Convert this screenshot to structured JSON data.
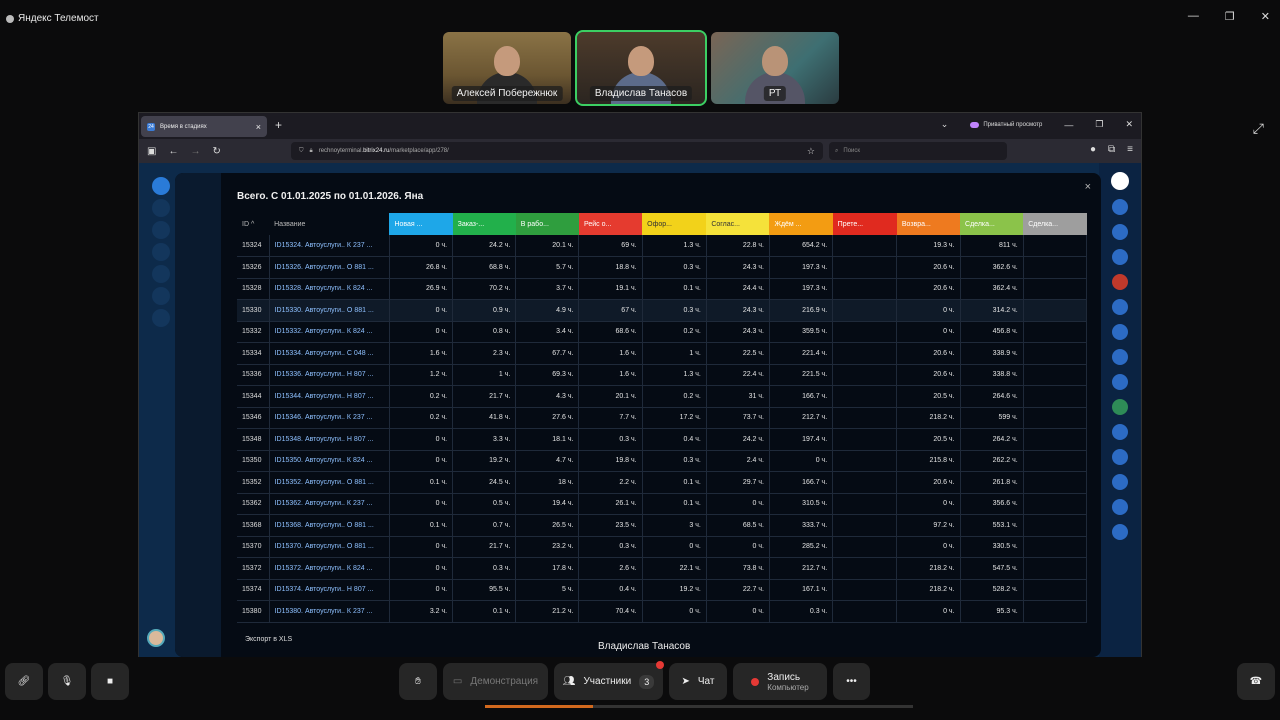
{
  "window": {
    "app_title": "Яндекс Телемост",
    "controls": [
      "—",
      "❐",
      "✕"
    ]
  },
  "participants": [
    {
      "name": "Алексей Побережнюк"
    },
    {
      "name": "Владислав Танасов"
    },
    {
      "name": "РТ"
    }
  ],
  "browser": {
    "tab_title": "Время в стадиях",
    "tab_icon": "24",
    "private_label": "Приватный просмотр",
    "url_prefix": "rechnoyterminal.",
    "url_domain": "bitrix24.ru",
    "url_path": "/marketplace/app/278/",
    "search_placeholder": "Поиск"
  },
  "modal": {
    "title": "Всего. С 01.01.2025 по 01.01.2026. Яна",
    "export_label": "Экспорт в XLS",
    "columns": [
      {
        "label": "ID ^",
        "color": ""
      },
      {
        "label": "Название",
        "color": ""
      },
      {
        "label": "Новая ...",
        "color": "#1ea7e8"
      },
      {
        "label": "Заказ-...",
        "color": "#22b04b"
      },
      {
        "label": "В рабо...",
        "color": "#2f9e3e"
      },
      {
        "label": "Рейс о...",
        "color": "#e53b2f"
      },
      {
        "label": "Офор...",
        "color": "#f2d21a"
      },
      {
        "label": "Соглас...",
        "color": "#f5e23a"
      },
      {
        "label": "Ждём ...",
        "color": "#f39c12"
      },
      {
        "label": "Прете...",
        "color": "#e02a1f"
      },
      {
        "label": "Возвра...",
        "color": "#ee7a1f"
      },
      {
        "label": "Сделка...",
        "color": "#8bc34a"
      },
      {
        "label": "Сделка...",
        "color": "#9e9e9e"
      }
    ],
    "rows": [
      [
        "15324",
        "ID15324. Автоуслуги.. К 237 ...",
        "0 ч.",
        "24.2 ч.",
        "20.1 ч.",
        "69 ч.",
        "1.3 ч.",
        "22.8 ч.",
        "654.2 ч.",
        "",
        "19.3 ч.",
        "811 ч.",
        ""
      ],
      [
        "15326",
        "ID15326. Автоуслуги.. О 881 ...",
        "26.8 ч.",
        "68.8 ч.",
        "5.7 ч.",
        "18.8 ч.",
        "0.3 ч.",
        "24.3 ч.",
        "197.3 ч.",
        "",
        "20.6 ч.",
        "362.6 ч.",
        ""
      ],
      [
        "15328",
        "ID15328. Автоуслуги.. К 824 ...",
        "26.9 ч.",
        "70.2 ч.",
        "3.7 ч.",
        "19.1 ч.",
        "0.1 ч.",
        "24.4 ч.",
        "197.3 ч.",
        "",
        "20.6 ч.",
        "362.4 ч.",
        ""
      ],
      [
        "15330",
        "ID15330. Автоуслуги.. О 881 ...",
        "0 ч.",
        "0.9 ч.",
        "4.9 ч.",
        "67 ч.",
        "0.3 ч.",
        "24.3 ч.",
        "216.9 ч.",
        "",
        "0 ч.",
        "314.2 ч.",
        ""
      ],
      [
        "15332",
        "ID15332. Автоуслуги.. К 824 ...",
        "0 ч.",
        "0.8 ч.",
        "3.4 ч.",
        "68.6 ч.",
        "0.2 ч.",
        "24.3 ч.",
        "359.5 ч.",
        "",
        "0 ч.",
        "456.8 ч.",
        ""
      ],
      [
        "15334",
        "ID15334. Автоуслуги.. С 048 ...",
        "1.6 ч.",
        "2.3 ч.",
        "67.7 ч.",
        "1.6 ч.",
        "1 ч.",
        "22.5 ч.",
        "221.4 ч.",
        "",
        "20.6 ч.",
        "338.9 ч.",
        ""
      ],
      [
        "15336",
        "ID15336. Автоуслуги.. Н 807 ...",
        "1.2 ч.",
        "1 ч.",
        "69.3 ч.",
        "1.6 ч.",
        "1.3 ч.",
        "22.4 ч.",
        "221.5 ч.",
        "",
        "20.6 ч.",
        "338.8 ч.",
        ""
      ],
      [
        "15344",
        "ID15344. Автоуслуги.. Н 807 ...",
        "0.2 ч.",
        "21.7 ч.",
        "4.3 ч.",
        "20.1 ч.",
        "0.2 ч.",
        "31 ч.",
        "166.7 ч.",
        "",
        "20.5 ч.",
        "264.6 ч.",
        ""
      ],
      [
        "15346",
        "ID15346. Автоуслуги.. К 237 ...",
        "0.2 ч.",
        "41.8 ч.",
        "27.6 ч.",
        "7.7 ч.",
        "17.2 ч.",
        "73.7 ч.",
        "212.7 ч.",
        "",
        "218.2 ч.",
        "599 ч.",
        ""
      ],
      [
        "15348",
        "ID15348. Автоуслуги.. Н 807 ...",
        "0 ч.",
        "3.3 ч.",
        "18.1 ч.",
        "0.3 ч.",
        "0.4 ч.",
        "24.2 ч.",
        "197.4 ч.",
        "",
        "20.5 ч.",
        "264.2 ч.",
        ""
      ],
      [
        "15350",
        "ID15350. Автоуслуги.. К 824 ...",
        "0 ч.",
        "19.2 ч.",
        "4.7 ч.",
        "19.8 ч.",
        "0.3 ч.",
        "2.4 ч.",
        "0 ч.",
        "",
        "215.8 ч.",
        "262.2 ч.",
        ""
      ],
      [
        "15352",
        "ID15352. Автоуслуги.. О 881 ...",
        "0.1 ч.",
        "24.5 ч.",
        "18 ч.",
        "2.2 ч.",
        "0.1 ч.",
        "29.7 ч.",
        "166.7 ч.",
        "",
        "20.6 ч.",
        "261.8 ч.",
        ""
      ],
      [
        "15362",
        "ID15362. Автоуслуги.. К 237 ...",
        "0 ч.",
        "0.5 ч.",
        "19.4 ч.",
        "26.1 ч.",
        "0.1 ч.",
        "0 ч.",
        "310.5 ч.",
        "",
        "0 ч.",
        "356.6 ч.",
        ""
      ],
      [
        "15368",
        "ID15368. Автоуслуги.. О 881 ...",
        "0.1 ч.",
        "0.7 ч.",
        "26.5 ч.",
        "23.5 ч.",
        "3 ч.",
        "68.5 ч.",
        "333.7 ч.",
        "",
        "97.2 ч.",
        "553.1 ч.",
        ""
      ],
      [
        "15370",
        "ID15370. Автоуслуги.. О 881 ...",
        "0 ч.",
        "21.7 ч.",
        "23.2 ч.",
        "0.3 ч.",
        "0 ч.",
        "0 ч.",
        "285.2 ч.",
        "",
        "0 ч.",
        "330.5 ч.",
        ""
      ],
      [
        "15372",
        "ID15372. Автоуслуги.. К 824 ...",
        "0 ч.",
        "0.3 ч.",
        "17.8 ч.",
        "2.6 ч.",
        "22.1 ч.",
        "73.8 ч.",
        "212.7 ч.",
        "",
        "218.2 ч.",
        "547.5 ч.",
        ""
      ],
      [
        "15374",
        "ID15374. Автоуслуги.. Н 807 ...",
        "0 ч.",
        "95.5 ч.",
        "5 ч.",
        "0.4 ч.",
        "19.2 ч.",
        "22.7 ч.",
        "167.1 ч.",
        "",
        "218.2 ч.",
        "528.2 ч.",
        ""
      ],
      [
        "15380",
        "ID15380. Автоуслуги.. К 237 ...",
        "3.2 ч.",
        "0.1 ч.",
        "21.2 ч.",
        "70.4 ч.",
        "0 ч.",
        "0 ч.",
        "0.3 ч.",
        "",
        "0 ч.",
        "95.3 ч.",
        ""
      ]
    ]
  },
  "presenter_name": "Владислав Танасов",
  "bottombar": {
    "demo_label": "Демонстрация",
    "participants_label": "Участники",
    "participants_count": "3",
    "chat_label": "Чат",
    "record_label": "Запись",
    "record_sub": "Компьютер"
  }
}
